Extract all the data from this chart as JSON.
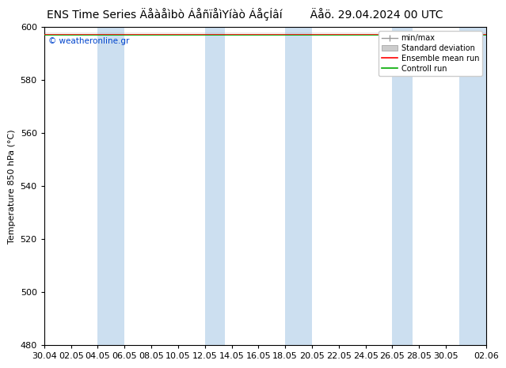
{
  "title_left": "ENS Time Series Äåàåìbò ÁåñïåìYíàò ÁåçÍâí",
  "title_right": "Äåö. 29.04.2024 00 UTC",
  "ylabel": "Temperature 850 hPa (°C)",
  "watermark": "© weatheronline.gr",
  "ylim": [
    480,
    600
  ],
  "yticks": [
    480,
    500,
    520,
    540,
    560,
    580,
    600
  ],
  "bg_color": "#ffffff",
  "plot_bg": "#ffffff",
  "band_color": "#ccdff0",
  "legend_items": [
    "min/max",
    "Standard deviation",
    "Ensemble mean run",
    "Controll run"
  ],
  "x_tick_labels": [
    "30.04",
    "02.05",
    "04.05",
    "06.05",
    "08.05",
    "10.05",
    "12.05",
    "14.05",
    "16.05",
    "18.05",
    "20.05",
    "22.05",
    "24.05",
    "26.05",
    "28.05",
    "30.05",
    "02.06"
  ],
  "n_ticks": 17,
  "data_value": 597.5,
  "title_fontsize": 10,
  "axis_fontsize": 8,
  "tick_fontsize": 8
}
